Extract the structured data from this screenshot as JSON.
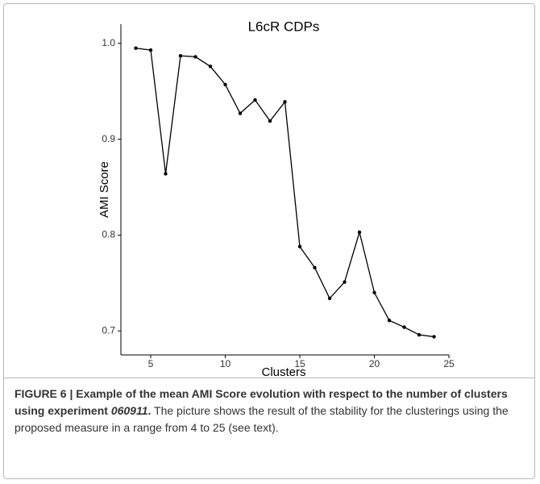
{
  "chart_data": {
    "type": "line",
    "title": "L6cR CDPs",
    "x_label": "Clusters",
    "y_label": "AMI Score",
    "x": [
      4,
      5,
      6,
      7,
      8,
      9,
      10,
      11,
      12,
      13,
      14,
      15,
      16,
      17,
      18,
      19,
      20,
      21,
      22,
      23,
      24
    ],
    "series": [
      {
        "color": "#000000",
        "values": [
          0.995,
          0.993,
          0.864,
          0.987,
          0.986,
          0.976,
          0.957,
          0.927,
          0.941,
          0.919,
          0.939,
          0.788,
          0.766,
          0.734,
          0.751,
          0.803,
          0.74,
          0.711,
          0.704,
          0.696,
          0.694
        ]
      }
    ],
    "xlim": [
      3,
      25
    ],
    "xticks": [
      5,
      10,
      15,
      20,
      25
    ],
    "ylim": [
      0.675,
      1.02
    ],
    "yticks": [
      {
        "value": 0.7,
        "label": "0.7"
      },
      {
        "value": 0.8,
        "label": "0.8"
      },
      {
        "value": 0.9,
        "label": "0.9"
      },
      {
        "value": 1.0,
        "label": "1.0"
      }
    ]
  },
  "caption": {
    "lead": "FIGURE 6 | Example of the mean AMI Score evolution with respect to the number of clusters using experiment ",
    "experiment": "060911",
    "lead_end": ".",
    "text": " The picture shows the result of the stability for the clusterings using the proposed measure in a range from 4 to 25 (see text)."
  }
}
